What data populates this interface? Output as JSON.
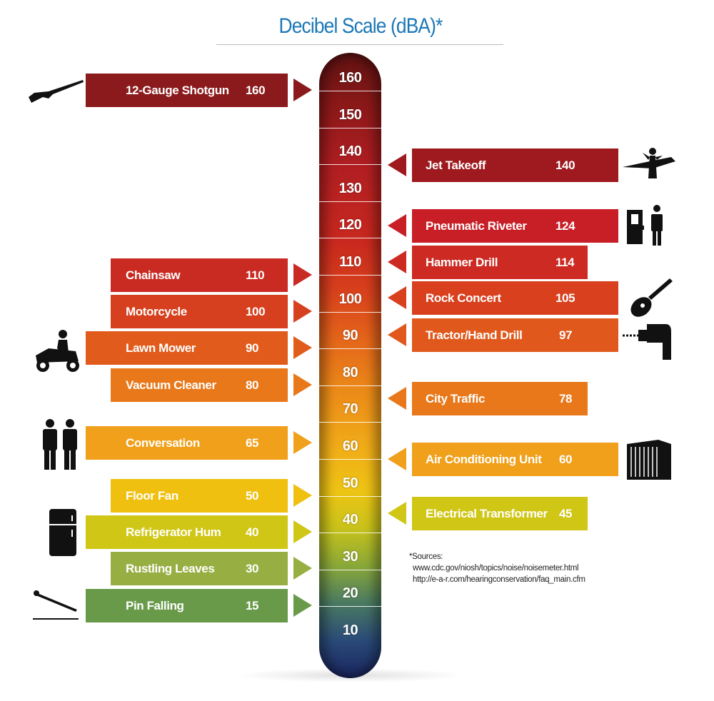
{
  "title": "Decibel Scale (dBA)*",
  "scale_ticks": [
    "160",
    "150",
    "140",
    "130",
    "120",
    "110",
    "100",
    "90",
    "80",
    "70",
    "60",
    "50",
    "40",
    "30",
    "20",
    "10"
  ],
  "left_items": [
    {
      "label": "12-Gauge Shotgun",
      "value": "160",
      "color": "#8b1a1c",
      "icon": "shotgun-icon"
    },
    {
      "label": "Chainsaw",
      "value": "110",
      "color": "#c92a22"
    },
    {
      "label": "Motorcycle",
      "value": "100",
      "color": "#d6401e"
    },
    {
      "label": "Lawn Mower",
      "value": "90",
      "color": "#e15c1c",
      "icon": "riding-mower-icon"
    },
    {
      "label": "Vacuum Cleaner",
      "value": "80",
      "color": "#e8781a"
    },
    {
      "label": "Conversation",
      "value": "65",
      "color": "#f0a01a",
      "icon": "two-people-icon"
    },
    {
      "label": "Floor Fan",
      "value": "50",
      "color": "#f0c010"
    },
    {
      "label": "Refrigerator Hum",
      "value": "40",
      "color": "#cfc615",
      "icon": "refrigerator-icon"
    },
    {
      "label": "Rustling Leaves",
      "value": "30",
      "color": "#97ae42"
    },
    {
      "label": "Pin Falling",
      "value": "15",
      "color": "#699a4a",
      "icon": "pin-icon"
    }
  ],
  "right_items": [
    {
      "label": "Jet Takeoff",
      "value": "140",
      "color": "#9e1a1e",
      "icon": "jet-icon"
    },
    {
      "label": "Pneumatic Riveter",
      "value": "124",
      "color": "#c81e26",
      "icon": "riveter-worker-icon"
    },
    {
      "label": "Hammer Drill",
      "value": "114",
      "color": "#cc2a22"
    },
    {
      "label": "Rock Concert",
      "value": "105",
      "color": "#d8401e",
      "icon": "guitar-icon"
    },
    {
      "label": "Tractor/Hand Drill",
      "value": "97",
      "color": "#e0581c",
      "icon": "hand-drill-icon"
    },
    {
      "label": "City Traffic",
      "value": "78",
      "color": "#e8781a"
    },
    {
      "label": "Air Conditioning Unit",
      "value": "60",
      "color": "#f0a01a",
      "icon": "ac-unit-icon"
    },
    {
      "label": "Electrical Transformer",
      "value": "45",
      "color": "#cfc615"
    }
  ],
  "sources": {
    "heading": "*Sources:",
    "lines": [
      "www.cdc.gov/niosh/topics/noise/noisemeter.html",
      "http://e-a-r.com/hearingconservation/faq_main.cfm"
    ]
  }
}
